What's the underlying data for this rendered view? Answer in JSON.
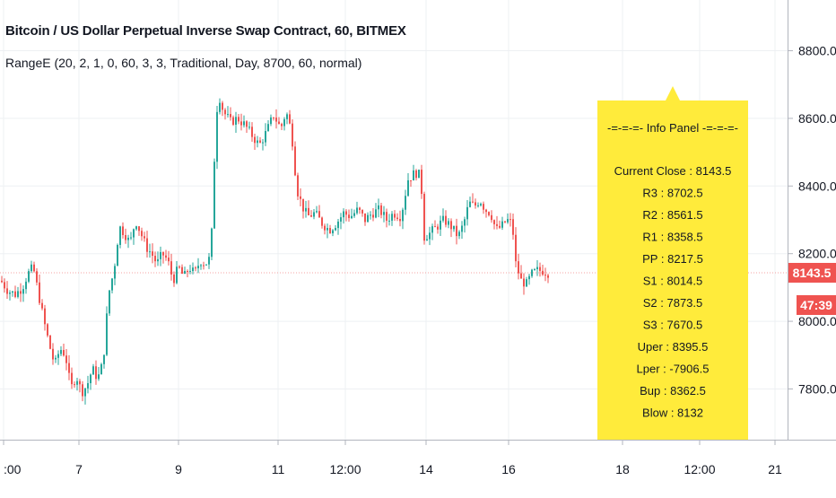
{
  "header": {
    "title": "Bitcoin / US Dollar Perpetual Inverse Swap Contract, 60, BITMEX",
    "indicator": "RangeE (20, 2, 1, 0, 60, 3, 3, Traditional, Day, 8700, 60, normal)"
  },
  "colors": {
    "up": "#26a69a",
    "down": "#ef5350",
    "grid": "#eef0f3",
    "panel": "#ffeb3b",
    "price_line": "#f5a3a3"
  },
  "price_axis": {
    "ticks": [
      "8800.0",
      "8600.0",
      "8400.0",
      "8200.0",
      "8000.0",
      "7800.0"
    ],
    "tick_values": [
      8800,
      8600,
      8400,
      8200,
      8000,
      7800
    ],
    "current_price": "8143.5",
    "countdown": "47:39"
  },
  "time_axis": {
    "labels": [
      ":00",
      "7",
      "9",
      "11",
      "12:00",
      "14",
      "16",
      "18",
      "12:00",
      "21"
    ]
  },
  "info_panel": {
    "title": "-=-=-=- Info Panel -=-=-=-",
    "lines": [
      "Current Close : 8143.5",
      "R3 : 8702.5",
      "R2 : 8561.5",
      "R1 : 8358.5",
      "PP : 8217.5",
      "S1 : 8014.5",
      "S2 : 7873.5",
      "S3 : 7670.5",
      "Uper : 8395.5",
      "Lper : -7906.5",
      "Bup : 8362.5",
      "Blow : 8132"
    ]
  },
  "chart_data": {
    "type": "candlestick",
    "y_range": [
      7650,
      8950
    ],
    "current_price": 8143.5,
    "price_path": [
      [
        0,
        8120
      ],
      [
        8,
        8090
      ],
      [
        16,
        8080
      ],
      [
        24,
        8100
      ],
      [
        30,
        8140
      ],
      [
        36,
        8160
      ],
      [
        42,
        8080
      ],
      [
        48,
        8000
      ],
      [
        54,
        7930
      ],
      [
        60,
        7870
      ],
      [
        66,
        7920
      ],
      [
        72,
        7900
      ],
      [
        78,
        7800
      ],
      [
        84,
        7840
      ],
      [
        90,
        7790
      ],
      [
        96,
        7810
      ],
      [
        102,
        7860
      ],
      [
        108,
        7830
      ],
      [
        114,
        7880
      ],
      [
        120,
        8080
      ],
      [
        126,
        8150
      ],
      [
        132,
        8280
      ],
      [
        138,
        8260
      ],
      [
        144,
        8230
      ],
      [
        150,
        8300
      ],
      [
        156,
        8260
      ],
      [
        162,
        8220
      ],
      [
        168,
        8200
      ],
      [
        174,
        8170
      ],
      [
        180,
        8200
      ],
      [
        186,
        8180
      ],
      [
        192,
        8120
      ],
      [
        198,
        8160
      ],
      [
        204,
        8130
      ],
      [
        210,
        8160
      ],
      [
        216,
        8140
      ],
      [
        222,
        8180
      ],
      [
        228,
        8170
      ],
      [
        234,
        8190
      ],
      [
        238,
        8480
      ],
      [
        242,
        8680
      ],
      [
        248,
        8620
      ],
      [
        256,
        8590
      ],
      [
        264,
        8600
      ],
      [
        272,
        8580
      ],
      [
        280,
        8550
      ],
      [
        288,
        8520
      ],
      [
        296,
        8560
      ],
      [
        304,
        8610
      ],
      [
        312,
        8570
      ],
      [
        318,
        8620
      ],
      [
        324,
        8560
      ],
      [
        330,
        8390
      ],
      [
        336,
        8340
      ],
      [
        342,
        8310
      ],
      [
        350,
        8320
      ],
      [
        358,
        8290
      ],
      [
        366,
        8270
      ],
      [
        374,
        8290
      ],
      [
        382,
        8320
      ],
      [
        390,
        8310
      ],
      [
        398,
        8330
      ],
      [
        406,
        8300
      ],
      [
        414,
        8320
      ],
      [
        422,
        8330
      ],
      [
        430,
        8300
      ],
      [
        438,
        8320
      ],
      [
        446,
        8310
      ],
      [
        454,
        8420
      ],
      [
        462,
        8440
      ],
      [
        468,
        8430
      ],
      [
        472,
        8250
      ],
      [
        478,
        8260
      ],
      [
        486,
        8280
      ],
      [
        494,
        8300
      ],
      [
        502,
        8280
      ],
      [
        510,
        8250
      ],
      [
        516,
        8290
      ],
      [
        522,
        8350
      ],
      [
        528,
        8340
      ],
      [
        534,
        8360
      ],
      [
        540,
        8330
      ],
      [
        546,
        8320
      ],
      [
        552,
        8270
      ],
      [
        558,
        8280
      ],
      [
        564,
        8300
      ],
      [
        570,
        8290
      ],
      [
        574,
        8170
      ],
      [
        580,
        8120
      ],
      [
        586,
        8110
      ],
      [
        592,
        8140
      ],
      [
        598,
        8150
      ],
      [
        604,
        8150
      ],
      [
        610,
        8143.5
      ]
    ]
  }
}
